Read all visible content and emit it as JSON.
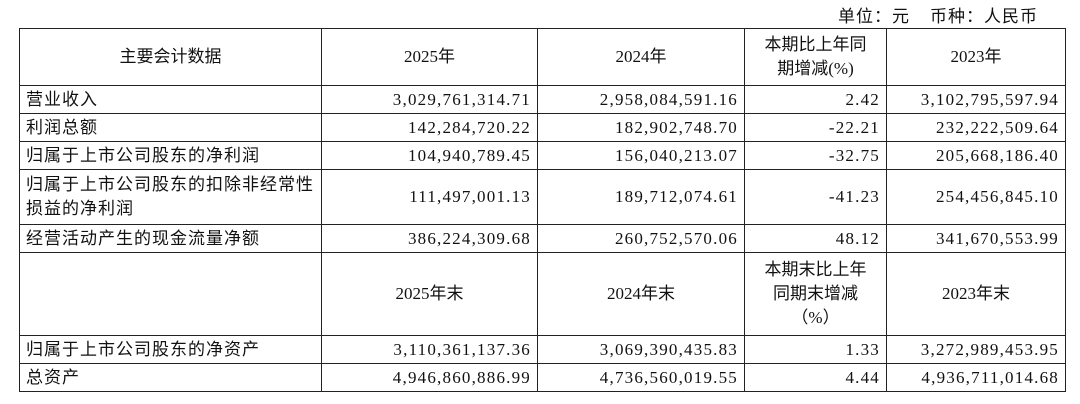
{
  "unit_note": {
    "unit": "单位：元",
    "currency": "币种：人民币"
  },
  "header1": [
    "主要会计数据",
    "2025年",
    "2024年",
    "本期比上年同期增减(%)",
    "2023年"
  ],
  "rows1": [
    {
      "label": "营业收入",
      "v2025": "3,029,761,314.71",
      "v2024": "2,958,084,591.16",
      "change": "2.42",
      "v2023": "3,102,795,597.94"
    },
    {
      "label": "利润总额",
      "v2025": "142,284,720.22",
      "v2024": "182,902,748.70",
      "change": "-22.21",
      "v2023": "232,222,509.64"
    },
    {
      "label": "归属于上市公司股东的净利润",
      "v2025": "104,940,789.45",
      "v2024": "156,040,213.07",
      "change": "-32.75",
      "v2023": "205,668,186.40"
    },
    {
      "label": "归属于上市公司股东的扣除非经常性损益的净利润",
      "v2025": "111,497,001.13",
      "v2024": "189,712,074.61",
      "change": "-41.23",
      "v2023": "254,456,845.10"
    },
    {
      "label": "经营活动产生的现金流量净额",
      "v2025": "386,224,309.68",
      "v2024": "260,752,570.06",
      "change": "48.12",
      "v2023": "341,670,553.99"
    }
  ],
  "header2": [
    "",
    "2025年末",
    "2024年末",
    "本期末比上年同期末增减（%）",
    "2023年末"
  ],
  "rows2": [
    {
      "label": "归属于上市公司股东的净资产",
      "v2025": "3,110,361,137.36",
      "v2024": "3,069,390,435.83",
      "change": "1.33",
      "v2023": "3,272,989,453.95"
    },
    {
      "label": "总资产",
      "v2025": "4,946,860,886.99",
      "v2024": "4,736,560,019.55",
      "change": "4.44",
      "v2023": "4,936,711,014.68"
    }
  ]
}
